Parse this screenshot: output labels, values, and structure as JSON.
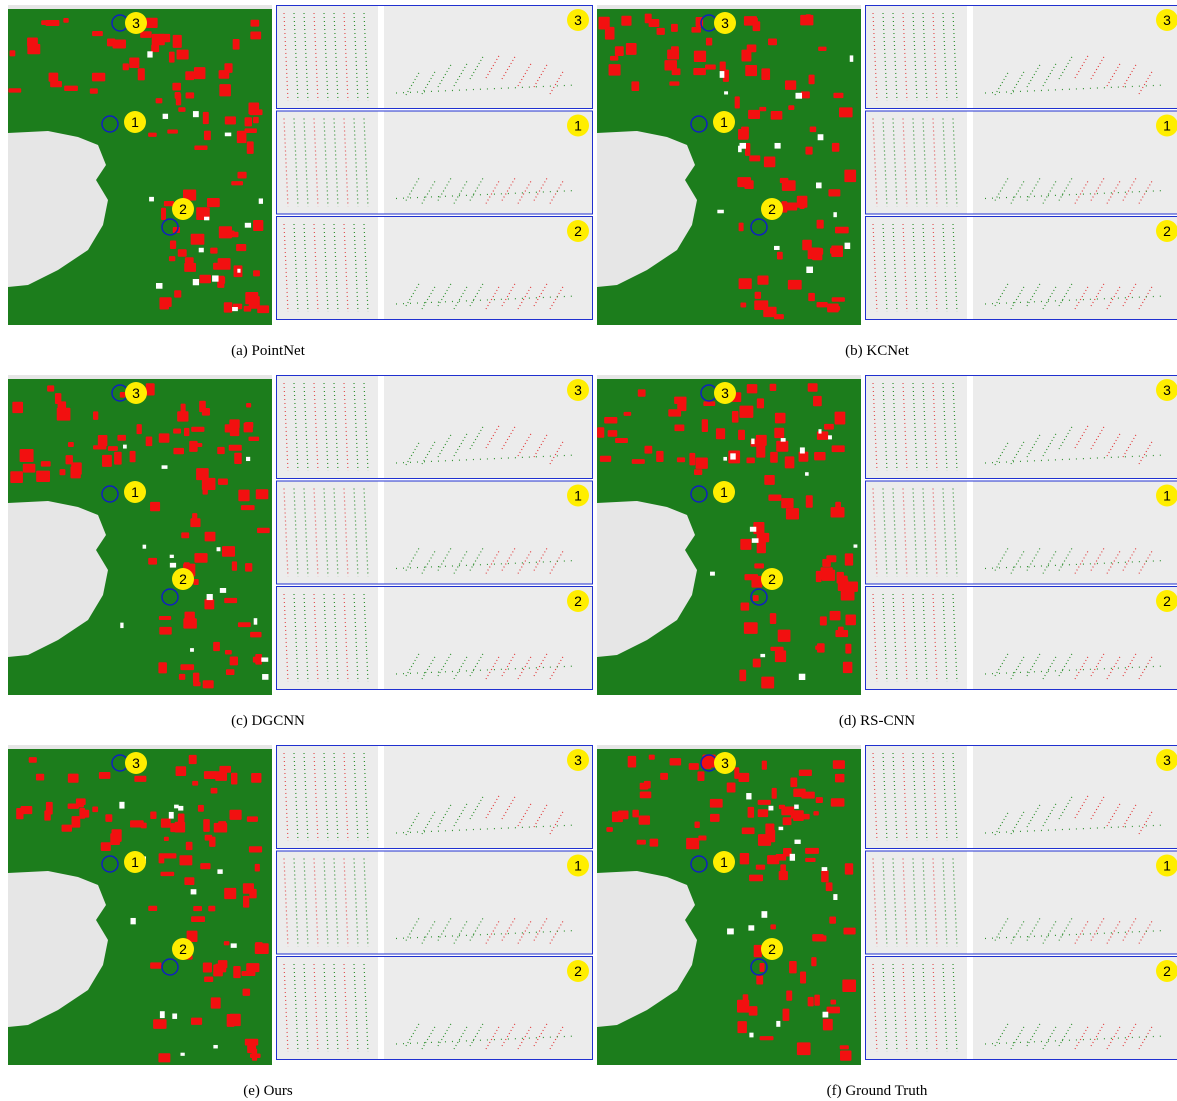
{
  "figure": {
    "panels": [
      {
        "caption": "(a) PointNet",
        "map_markers": [
          "3",
          "1",
          "2"
        ],
        "inset_labels": [
          "3",
          "1",
          "2"
        ]
      },
      {
        "caption": "(b) KCNet",
        "map_markers": [
          "3",
          "1",
          "2"
        ],
        "inset_labels": [
          "3",
          "1",
          "2"
        ]
      },
      {
        "caption": "(c) DGCNN",
        "map_markers": [
          "3",
          "1",
          "2"
        ],
        "inset_labels": [
          "3",
          "1",
          "2"
        ]
      },
      {
        "caption": "(d) RS-CNN",
        "map_markers": [
          "3",
          "1",
          "2"
        ],
        "inset_labels": [
          "3",
          "1",
          "2"
        ]
      },
      {
        "caption": "(e) Ours",
        "map_markers": [
          "3",
          "1",
          "2"
        ],
        "inset_labels": [
          "3",
          "1",
          "2"
        ]
      },
      {
        "caption": "(f) Ground Truth",
        "map_markers": [
          "3",
          "1",
          "2"
        ],
        "inset_labels": [
          "3",
          "1",
          "2"
        ]
      }
    ]
  }
}
